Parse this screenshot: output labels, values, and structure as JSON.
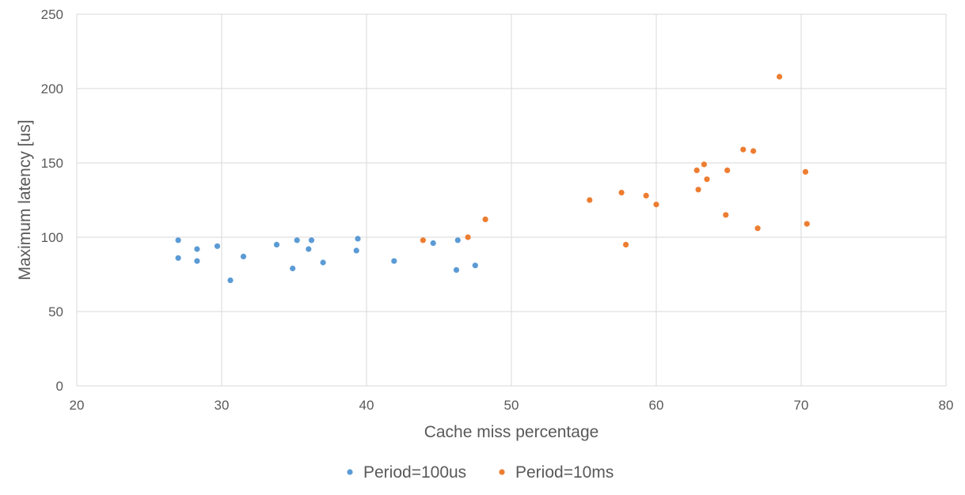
{
  "chart_data": {
    "type": "scatter",
    "title": "",
    "xlabel": "Cache miss percentage",
    "ylabel": "Maximum latency [us]",
    "xlim": [
      20,
      80
    ],
    "ylim": [
      0,
      250
    ],
    "xticks": [
      20,
      30,
      40,
      50,
      60,
      70,
      80
    ],
    "yticks": [
      0,
      50,
      100,
      150,
      200,
      250
    ],
    "grid": true,
    "legend_position": "bottom",
    "series": [
      {
        "name": "Period=100us",
        "color": "#5B9BD5",
        "points": [
          [
            27.0,
            98
          ],
          [
            27.0,
            86
          ],
          [
            28.3,
            92
          ],
          [
            28.3,
            84
          ],
          [
            29.7,
            94
          ],
          [
            30.6,
            71
          ],
          [
            31.5,
            87
          ],
          [
            33.8,
            95
          ],
          [
            34.9,
            79
          ],
          [
            35.2,
            98
          ],
          [
            36.0,
            92
          ],
          [
            36.2,
            98
          ],
          [
            37.0,
            83
          ],
          [
            39.3,
            91
          ],
          [
            39.4,
            99
          ],
          [
            41.9,
            84
          ],
          [
            44.6,
            96
          ],
          [
            46.2,
            78
          ],
          [
            46.3,
            98
          ],
          [
            47.5,
            81
          ]
        ]
      },
      {
        "name": "Period=10ms",
        "color": "#ED7D31",
        "points": [
          [
            43.9,
            98
          ],
          [
            47.0,
            100
          ],
          [
            48.2,
            112
          ],
          [
            55.4,
            125
          ],
          [
            57.6,
            130
          ],
          [
            57.9,
            95
          ],
          [
            59.3,
            128
          ],
          [
            60.0,
            122
          ],
          [
            62.8,
            145
          ],
          [
            62.9,
            132
          ],
          [
            63.3,
            149
          ],
          [
            63.5,
            139
          ],
          [
            64.8,
            115
          ],
          [
            64.9,
            145
          ],
          [
            66.0,
            159
          ],
          [
            66.7,
            158
          ],
          [
            67.0,
            106
          ],
          [
            68.5,
            208
          ],
          [
            70.3,
            144
          ],
          [
            70.4,
            109
          ]
        ]
      }
    ]
  }
}
